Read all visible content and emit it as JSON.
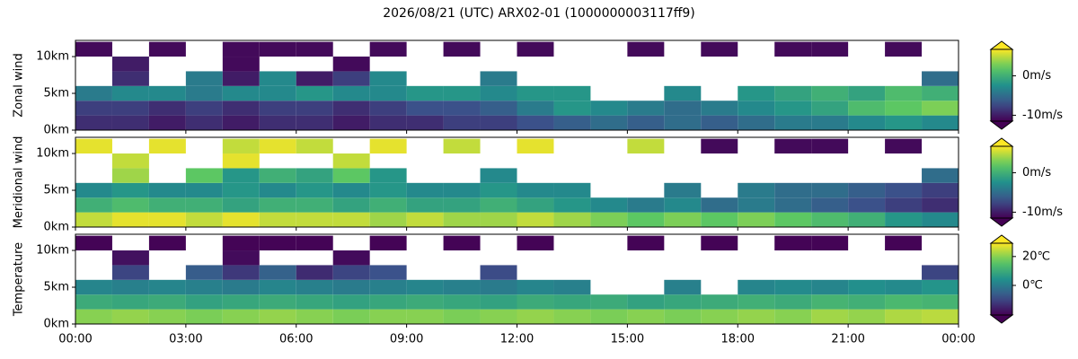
{
  "title": "2026/08/21 (UTC) ARX02-01 (1000000003117ff9)",
  "chart_data": [
    {
      "type": "heatmap",
      "ylabel": "Zonal wind",
      "colormap": "viridis",
      "xbins": [
        0,
        1,
        2,
        3,
        4,
        5,
        6,
        7,
        8,
        9,
        10,
        11,
        12,
        13,
        14,
        15,
        16,
        17,
        18,
        19,
        20,
        21,
        22,
        23,
        24
      ],
      "ybins": [
        0,
        2,
        4,
        6,
        8,
        10,
        12
      ],
      "values": [
        [
          -9,
          -9,
          -10,
          -9,
          -10,
          -9,
          -9,
          -10,
          -9,
          -9,
          -8,
          -8,
          -7,
          -6,
          -5,
          -6,
          -5,
          -6,
          -5,
          -4,
          -4,
          -3,
          -2,
          -3
        ],
        [
          -8,
          -8,
          -9,
          -8,
          -9,
          -8,
          -8,
          -9,
          -8,
          -7,
          -7,
          -6,
          -4,
          -2,
          -3,
          -4,
          -5,
          -4,
          -3,
          -2,
          -1,
          1,
          2,
          3
        ],
        [
          -4,
          -3,
          -3,
          -4,
          -3,
          -3,
          -2,
          -3,
          -3,
          -2,
          -2,
          -3,
          -2,
          -2,
          null,
          null,
          -3,
          null,
          -2,
          -1,
          0,
          -1,
          1,
          0
        ],
        [
          null,
          -9,
          null,
          -4,
          -10,
          -3,
          -10,
          -8,
          -3,
          null,
          null,
          -4,
          null,
          null,
          null,
          null,
          null,
          null,
          null,
          null,
          null,
          null,
          null,
          -5
        ],
        [
          null,
          -10,
          null,
          null,
          -11,
          null,
          null,
          -11,
          null,
          null,
          null,
          null,
          null,
          null,
          null,
          null,
          null,
          null,
          null,
          null,
          null,
          null,
          null,
          null
        ],
        [
          -11,
          null,
          -11,
          null,
          -11,
          -11,
          -11,
          null,
          -11,
          null,
          -11,
          null,
          -11,
          null,
          null,
          -11,
          null,
          -11,
          null,
          -11,
          -11,
          null,
          -11,
          null
        ]
      ],
      "xlim": [
        0,
        24
      ],
      "ylim": [
        0,
        12.2
      ],
      "xticks": [
        {
          "value": 0,
          "label": "00:00"
        },
        {
          "value": 3,
          "label": "03:00"
        },
        {
          "value": 6,
          "label": "06:00"
        },
        {
          "value": 9,
          "label": "09:00"
        },
        {
          "value": 12,
          "label": "12:00"
        },
        {
          "value": 15,
          "label": "15:00"
        },
        {
          "value": 18,
          "label": "18:00"
        },
        {
          "value": 21,
          "label": "21:00"
        },
        {
          "value": 24,
          "label": "00:00"
        }
      ],
      "yticks": [
        {
          "value": 0,
          "label": "0km"
        },
        {
          "value": 5,
          "label": "5km"
        },
        {
          "value": 10,
          "label": "10km"
        }
      ],
      "clim": [
        -11.5,
        6.7
      ],
      "cticks": [
        {
          "value": 0,
          "label": "0m/s"
        },
        {
          "value": -10,
          "label": "-10m/s"
        }
      ]
    },
    {
      "type": "heatmap",
      "ylabel": "Meridional wind",
      "colormap": "viridis",
      "xbins": [
        0,
        1,
        2,
        3,
        4,
        5,
        6,
        7,
        8,
        9,
        10,
        11,
        12,
        13,
        14,
        15,
        16,
        17,
        18,
        19,
        20,
        21,
        22,
        23,
        24
      ],
      "ybins": [
        0,
        2,
        4,
        6,
        8,
        10,
        12
      ],
      "values": [
        [
          5,
          6,
          6,
          5,
          6,
          5,
          5,
          5,
          4,
          5,
          4,
          4,
          5,
          4,
          3,
          2,
          3,
          2,
          3,
          2,
          1,
          0,
          -2,
          -3
        ],
        [
          0,
          1,
          0,
          0,
          -1,
          0,
          0,
          -1,
          0,
          -1,
          -1,
          0,
          -1,
          -2,
          -3,
          -4,
          -3,
          -5,
          -4,
          -5,
          -6,
          -7,
          -8,
          -9
        ],
        [
          -3,
          -2,
          -3,
          -3,
          -2,
          -3,
          -2,
          -3,
          -2,
          -3,
          -3,
          -2,
          -3,
          -3,
          null,
          null,
          -4,
          null,
          -4,
          -5,
          -5,
          -6,
          -7,
          -8
        ],
        [
          null,
          4,
          null,
          2,
          -2,
          0,
          -1,
          2,
          -2,
          null,
          null,
          -3,
          null,
          null,
          null,
          null,
          null,
          null,
          null,
          null,
          null,
          null,
          null,
          -5
        ],
        [
          null,
          5,
          null,
          null,
          6,
          null,
          null,
          5,
          null,
          null,
          null,
          null,
          null,
          null,
          null,
          null,
          null,
          null,
          null,
          null,
          null,
          null,
          null,
          null
        ],
        [
          6,
          null,
          6,
          null,
          5,
          6,
          5,
          null,
          6,
          null,
          5,
          null,
          6,
          null,
          null,
          5,
          null,
          -11,
          null,
          -11,
          -11,
          null,
          -11,
          null
        ]
      ],
      "xlim": [
        0,
        24
      ],
      "ylim": [
        0,
        12.2
      ],
      "xticks": [
        {
          "value": 0,
          "label": "00:00"
        },
        {
          "value": 3,
          "label": "03:00"
        },
        {
          "value": 6,
          "label": "06:00"
        },
        {
          "value": 9,
          "label": "09:00"
        },
        {
          "value": 12,
          "label": "12:00"
        },
        {
          "value": 15,
          "label": "15:00"
        },
        {
          "value": 18,
          "label": "18:00"
        },
        {
          "value": 21,
          "label": "21:00"
        },
        {
          "value": 24,
          "label": "00:00"
        }
      ],
      "yticks": [
        {
          "value": 0,
          "label": "0km"
        },
        {
          "value": 5,
          "label": "5km"
        },
        {
          "value": 10,
          "label": "10km"
        }
      ],
      "clim": [
        -11.5,
        6.7
      ],
      "cticks": [
        {
          "value": 0,
          "label": "0m/s"
        },
        {
          "value": -10,
          "label": "-10m/s"
        }
      ]
    },
    {
      "type": "heatmap",
      "ylabel": "Temperature",
      "colormap": "viridis",
      "xbins": [
        0,
        1,
        2,
        3,
        4,
        5,
        6,
        7,
        8,
        9,
        10,
        11,
        12,
        13,
        14,
        15,
        16,
        17,
        18,
        19,
        20,
        21,
        22,
        23,
        24
      ],
      "ybins": [
        0,
        2,
        4,
        6,
        8,
        10,
        12
      ],
      "values": [
        [
          20,
          21,
          20,
          19,
          20,
          21,
          20,
          19,
          20,
          20,
          19,
          20,
          21,
          20,
          19,
          20,
          19,
          20,
          21,
          20,
          22,
          21,
          23,
          24
        ],
        [
          10,
          9,
          10,
          8,
          9,
          10,
          9,
          8,
          9,
          10,
          9,
          8,
          10,
          9,
          10,
          8,
          9,
          10,
          11,
          10,
          12,
          11,
          13,
          12
        ],
        [
          2,
          1,
          2,
          1,
          0,
          2,
          1,
          0,
          1,
          2,
          1,
          0,
          2,
          1,
          null,
          null,
          1,
          null,
          2,
          3,
          2,
          4,
          3,
          5
        ],
        [
          null,
          -10,
          null,
          -6,
          -12,
          -5,
          -14,
          -10,
          -8,
          null,
          null,
          -9,
          null,
          null,
          null,
          null,
          null,
          null,
          null,
          null,
          null,
          null,
          null,
          -10
        ],
        [
          null,
          -18,
          null,
          null,
          -19,
          null,
          null,
          -19,
          null,
          null,
          null,
          null,
          null,
          null,
          null,
          null,
          null,
          null,
          null,
          null,
          null,
          null,
          null,
          null
        ],
        [
          -20,
          null,
          -20,
          null,
          -20,
          -20,
          -20,
          null,
          -20,
          null,
          -20,
          null,
          -20,
          null,
          null,
          -20,
          null,
          -20,
          null,
          -20,
          -20,
          null,
          -20,
          null
        ]
      ],
      "xlim": [
        0,
        24
      ],
      "ylim": [
        0,
        12.2
      ],
      "xticks": [
        {
          "value": 0,
          "label": "00:00"
        },
        {
          "value": 3,
          "label": "03:00"
        },
        {
          "value": 6,
          "label": "06:00"
        },
        {
          "value": 9,
          "label": "09:00"
        },
        {
          "value": 12,
          "label": "12:00"
        },
        {
          "value": 15,
          "label": "15:00"
        },
        {
          "value": 18,
          "label": "18:00"
        },
        {
          "value": 21,
          "label": "21:00"
        },
        {
          "value": 24,
          "label": "00:00"
        }
      ],
      "yticks": [
        {
          "value": 0,
          "label": "0km"
        },
        {
          "value": 5,
          "label": "5km"
        },
        {
          "value": 10,
          "label": "10km"
        }
      ],
      "clim": [
        -20.5,
        29.2
      ],
      "cticks": [
        {
          "value": 20,
          "label": "20℃"
        },
        {
          "value": 0,
          "label": "0℃"
        }
      ]
    }
  ]
}
